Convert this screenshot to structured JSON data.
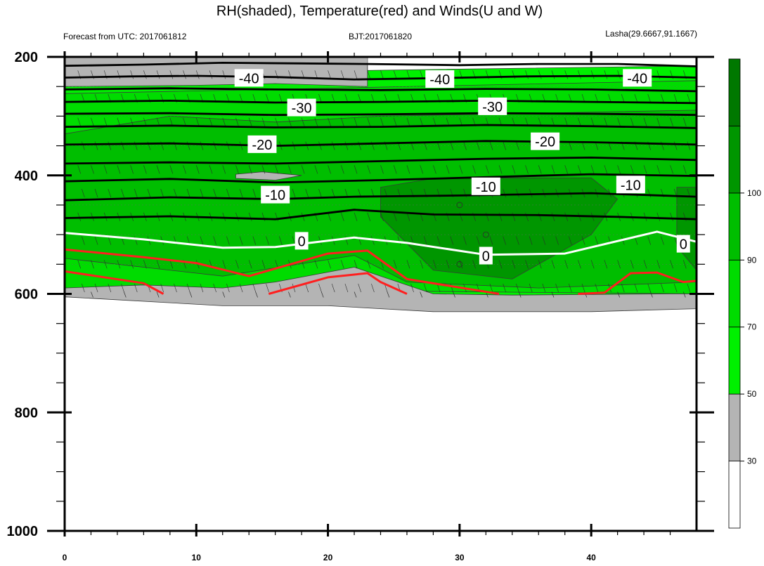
{
  "chart_data": {
    "type": "heatmap",
    "title": "RH(shaded), Temperature(red) and Winds(U and W)",
    "subtitle_left": "Forecast from UTC: 2017061812",
    "subtitle_center": "BJT:2017061820",
    "subtitle_right": "Lasha(29.6667,91.1667)",
    "x_ticks": [
      0,
      10,
      20,
      30,
      40
    ],
    "x_range": [
      0,
      48
    ],
    "y_ticks": [
      200,
      400,
      600,
      800,
      1000
    ],
    "y_range": [
      200,
      1000
    ],
    "y_reversed": true,
    "colorbar": {
      "levels": [
        30,
        50,
        70,
        90,
        100
      ],
      "colors": [
        "#ffffff",
        "#b4b4b4",
        "#00f000",
        "#00dc00",
        "#00be00",
        "#009600",
        "#007800"
      ]
    },
    "temperature_contours": [
      {
        "label": "-40",
        "color": "#000000",
        "points": [
          [
            0,
            215
          ],
          [
            6,
            213
          ],
          [
            12,
            210
          ],
          [
            18,
            211
          ],
          [
            23,
            212
          ],
          [
            30,
            214
          ],
          [
            36,
            212
          ],
          [
            42,
            212
          ],
          [
            48,
            216
          ]
        ]
      },
      {
        "label": "-40",
        "color": "#000000",
        "points": [
          [
            0,
            235
          ],
          [
            5,
            233
          ],
          [
            10,
            232
          ],
          [
            16,
            234
          ],
          [
            22,
            238
          ],
          [
            28,
            236
          ],
          [
            35,
            233
          ],
          [
            42,
            232
          ],
          [
            48,
            235
          ]
        ]
      },
      {
        "label": "-40",
        "color": "#000000",
        "points": [
          [
            0,
            255
          ],
          [
            8,
            253
          ],
          [
            16,
            255
          ],
          [
            24,
            256
          ],
          [
            32,
            254
          ],
          [
            40,
            255
          ],
          [
            48,
            258
          ]
        ]
      },
      {
        "label": "-30",
        "color": "#000000",
        "points": [
          [
            0,
            276
          ],
          [
            8,
            274
          ],
          [
            16,
            277
          ],
          [
            24,
            276
          ],
          [
            32,
            274
          ],
          [
            40,
            276
          ],
          [
            48,
            278
          ]
        ]
      },
      {
        "label": "-30",
        "color": "#000000",
        "points": [
          [
            0,
            296
          ],
          [
            8,
            295
          ],
          [
            16,
            298
          ],
          [
            24,
            297
          ],
          [
            32,
            295
          ],
          [
            40,
            296
          ],
          [
            48,
            298
          ]
        ]
      },
      {
        "label": "-20",
        "color": "#000000",
        "points": [
          [
            0,
            318
          ],
          [
            8,
            316
          ],
          [
            16,
            319
          ],
          [
            24,
            318
          ],
          [
            32,
            315
          ],
          [
            40,
            317
          ],
          [
            48,
            320
          ]
        ]
      },
      {
        "label": "-20",
        "color": "#000000",
        "points": [
          [
            0,
            348
          ],
          [
            8,
            346
          ],
          [
            16,
            350
          ],
          [
            24,
            346
          ],
          [
            32,
            342
          ],
          [
            40,
            344
          ],
          [
            48,
            348
          ]
        ]
      },
      {
        "label": "-20",
        "color": "#000000",
        "points": [
          [
            0,
            380
          ],
          [
            8,
            378
          ],
          [
            16,
            380
          ],
          [
            24,
            376
          ],
          [
            32,
            372
          ],
          [
            40,
            370
          ],
          [
            48,
            374
          ]
        ]
      },
      {
        "label": "-10",
        "color": "#000000",
        "points": [
          [
            0,
            410
          ],
          [
            8,
            406
          ],
          [
            16,
            412
          ],
          [
            24,
            408
          ],
          [
            32,
            403
          ],
          [
            40,
            398
          ],
          [
            48,
            401
          ]
        ]
      },
      {
        "label": "-10",
        "color": "#000000",
        "points": [
          [
            0,
            442
          ],
          [
            8,
            437
          ],
          [
            16,
            440
          ],
          [
            22,
            436
          ],
          [
            30,
            434
          ],
          [
            40,
            430
          ],
          [
            48,
            436
          ]
        ]
      },
      {
        "label": "-10",
        "color": "#000000",
        "points": [
          [
            0,
            472
          ],
          [
            8,
            469
          ],
          [
            16,
            474
          ],
          [
            22,
            458
          ],
          [
            28,
            466
          ],
          [
            36,
            467
          ],
          [
            42,
            470
          ],
          [
            48,
            474
          ]
        ]
      },
      {
        "label": "0",
        "color": "#ffffff",
        "points": [
          [
            0,
            497
          ],
          [
            6,
            508
          ],
          [
            12,
            522
          ],
          [
            16,
            521
          ],
          [
            22,
            505
          ],
          [
            26,
            514
          ],
          [
            32,
            534
          ],
          [
            38,
            532
          ],
          [
            45,
            495
          ],
          [
            48,
            512
          ]
        ]
      },
      {
        "label": "",
        "color": "#ff1f1f",
        "points": [
          [
            0,
            525
          ],
          [
            6,
            538
          ],
          [
            10,
            548
          ],
          [
            14,
            570
          ],
          [
            20,
            532
          ],
          [
            23,
            527
          ],
          [
            26,
            575
          ],
          [
            33,
            600
          ]
        ]
      },
      {
        "label": "",
        "color": "#ff1f1f",
        "points": [
          [
            0,
            562
          ],
          [
            6,
            582
          ],
          [
            7.5,
            600
          ]
        ]
      },
      {
        "label": "",
        "color": "#ff1f1f",
        "points": [
          [
            15.5,
            600
          ],
          [
            20,
            572
          ],
          [
            23,
            565
          ],
          [
            24,
            580
          ],
          [
            26,
            600
          ]
        ]
      },
      {
        "label": "",
        "color": "#ff1f1f",
        "points": [
          [
            39,
            600
          ],
          [
            41,
            598
          ],
          [
            43,
            565
          ],
          [
            45,
            564
          ],
          [
            47,
            580
          ],
          [
            48,
            578
          ]
        ]
      }
    ],
    "contour_labels": [
      {
        "text": "-40",
        "x": 14,
        "y": 236
      },
      {
        "text": "-40",
        "x": 28.5,
        "y": 238
      },
      {
        "text": "-40",
        "x": 43.5,
        "y": 236
      },
      {
        "text": "-30",
        "x": 18,
        "y": 286
      },
      {
        "text": "-30",
        "x": 32.5,
        "y": 284
      },
      {
        "text": "-20",
        "x": 15,
        "y": 348
      },
      {
        "text": "-20",
        "x": 36.5,
        "y": 343
      },
      {
        "text": "-10",
        "x": 16,
        "y": 433
      },
      {
        "text": "-10",
        "x": 32,
        "y": 419
      },
      {
        "text": "-10",
        "x": 43,
        "y": 416
      },
      {
        "text": "0",
        "x": 18,
        "y": 511
      },
      {
        "text": "0",
        "x": 32,
        "y": 536
      },
      {
        "text": "0",
        "x": 47,
        "y": 516
      }
    ]
  }
}
